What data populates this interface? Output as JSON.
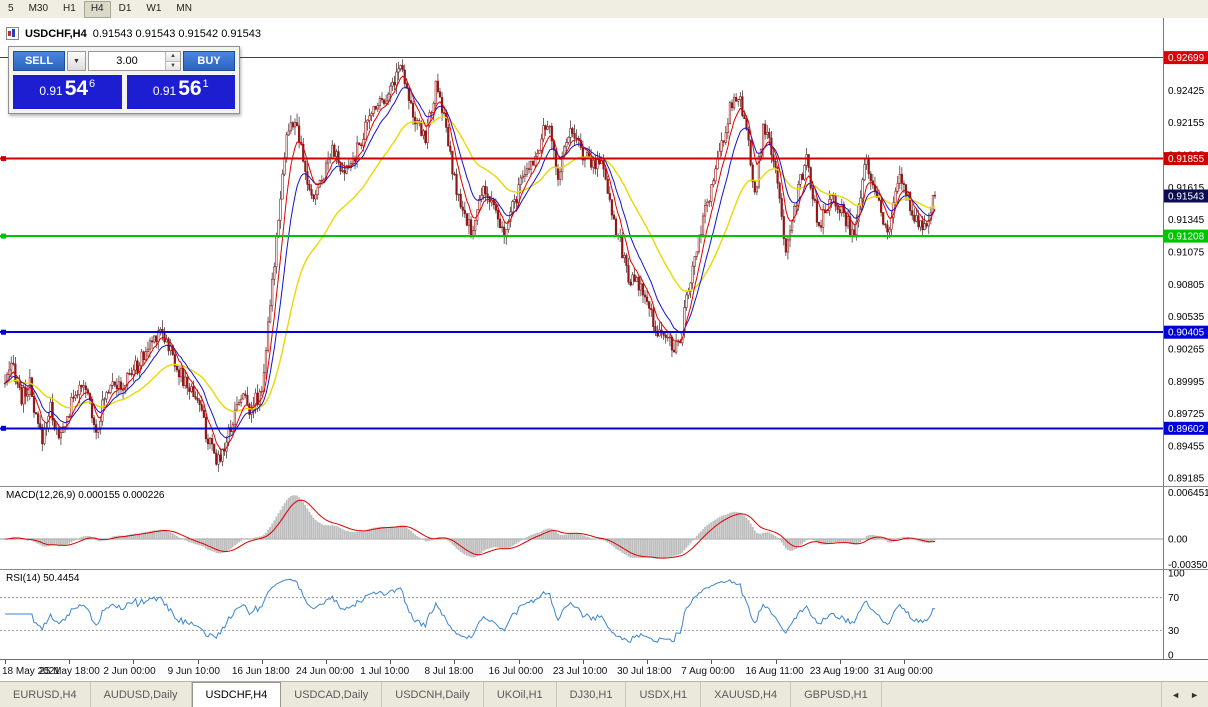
{
  "toolbar": {
    "items": [
      "5",
      "M30",
      "H1",
      "H4",
      "D1",
      "W1",
      "MN"
    ],
    "active": "H4"
  },
  "chart": {
    "symbol": "USDCHF,H4",
    "ohlc": "0.91543 0.91543 0.91542 0.91543",
    "trade_panel": {
      "sell_label": "SELL",
      "buy_label": "BUY",
      "volume": "3.00",
      "sell_price_prefix": "0.91",
      "sell_price_big": "54",
      "sell_price_sup": "6",
      "buy_price_prefix": "0.91",
      "buy_price_big": "56",
      "buy_price_sup": "1"
    },
    "axis": {
      "ticks": [
        0.92425,
        0.92155,
        0.91885,
        0.91615,
        0.91345,
        0.91075,
        0.90805,
        0.90535,
        0.90265,
        0.89995,
        0.89725,
        0.89455,
        0.89185
      ],
      "current": {
        "value": "0.91543",
        "bg": "#0c0c52"
      }
    },
    "hlines": [
      {
        "price": 0.92699,
        "label": "0.92699",
        "color": "#dd0000",
        "width": 1,
        "handle": false
      },
      {
        "price": 0.91855,
        "label": "0.91855",
        "color": "#cc0000",
        "width": 2,
        "handle": true
      },
      {
        "price": 0.91208,
        "label": "0.91208",
        "color": "#00c400",
        "width": 2,
        "handle": true
      },
      {
        "price": 0.90405,
        "label": "0.90405",
        "color": "#0000d8",
        "width": 2,
        "handle": true
      },
      {
        "price": 0.89602,
        "label": "0.89602",
        "color": "#0000d8",
        "width": 2,
        "handle": true
      }
    ]
  },
  "chart_data": {
    "type": "candlestick",
    "symbol": "USDCHF",
    "timeframe": "H4",
    "bars": 450,
    "ylim": [
      0.8912,
      0.9303
    ],
    "last_close": 0.91543,
    "candle_up_color": "#ffffff",
    "candle_down_color": "#8f1818",
    "candle_border": "#8f1818",
    "wick_color": "#3a2020",
    "price_path": [
      [
        0,
        0.8998
      ],
      [
        4,
        0.9012
      ],
      [
        8,
        0.8985
      ],
      [
        12,
        0.8996
      ],
      [
        14,
        0.8972
      ],
      [
        18,
        0.8952
      ],
      [
        22,
        0.8978
      ],
      [
        26,
        0.895
      ],
      [
        30,
        0.8968
      ],
      [
        34,
        0.8992
      ],
      [
        40,
        0.899
      ],
      [
        44,
        0.8958
      ],
      [
        48,
        0.8985
      ],
      [
        52,
        0.9004
      ],
      [
        56,
        0.899
      ],
      [
        60,
        0.9006
      ],
      [
        64,
        0.9012
      ],
      [
        70,
        0.903
      ],
      [
        75,
        0.9045
      ],
      [
        80,
        0.9025
      ],
      [
        86,
        0.9
      ],
      [
        93,
        0.8986
      ],
      [
        98,
        0.895
      ],
      [
        102,
        0.8932
      ],
      [
        106,
        0.8945
      ],
      [
        110,
        0.8968
      ],
      [
        114,
        0.899
      ],
      [
        118,
        0.8978
      ],
      [
        122,
        0.8986
      ],
      [
        124,
        0.8994
      ],
      [
        128,
        0.906
      ],
      [
        132,
        0.914
      ],
      [
        136,
        0.9205
      ],
      [
        140,
        0.9218
      ],
      [
        144,
        0.9182
      ],
      [
        148,
        0.915
      ],
      [
        153,
        0.9168
      ],
      [
        158,
        0.9198
      ],
      [
        163,
        0.917
      ],
      [
        168,
        0.9184
      ],
      [
        173,
        0.9206
      ],
      [
        179,
        0.9232
      ],
      [
        185,
        0.924
      ],
      [
        191,
        0.9264
      ],
      [
        194,
        0.9248
      ],
      [
        198,
        0.9214
      ],
      [
        203,
        0.9204
      ],
      [
        208,
        0.9244
      ],
      [
        212,
        0.9222
      ],
      [
        216,
        0.9174
      ],
      [
        221,
        0.9138
      ],
      [
        226,
        0.9124
      ],
      [
        231,
        0.9164
      ],
      [
        236,
        0.9142
      ],
      [
        241,
        0.912
      ],
      [
        246,
        0.915
      ],
      [
        250,
        0.9168
      ],
      [
        256,
        0.9188
      ],
      [
        262,
        0.9216
      ],
      [
        267,
        0.9172
      ],
      [
        272,
        0.9208
      ],
      [
        277,
        0.9196
      ],
      [
        283,
        0.918
      ],
      [
        288,
        0.9186
      ],
      [
        294,
        0.9134
      ],
      [
        301,
        0.9088
      ],
      [
        308,
        0.9074
      ],
      [
        314,
        0.9044
      ],
      [
        320,
        0.9034
      ],
      [
        325,
        0.9027
      ],
      [
        330,
        0.9076
      ],
      [
        334,
        0.9108
      ],
      [
        338,
        0.914
      ],
      [
        344,
        0.9182
      ],
      [
        350,
        0.9226
      ],
      [
        354,
        0.924
      ],
      [
        359,
        0.9196
      ],
      [
        362,
        0.9152
      ],
      [
        366,
        0.9214
      ],
      [
        371,
        0.9186
      ],
      [
        377,
        0.9112
      ],
      [
        383,
        0.916
      ],
      [
        387,
        0.9184
      ],
      [
        393,
        0.9128
      ],
      [
        399,
        0.9158
      ],
      [
        405,
        0.914
      ],
      [
        410,
        0.9118
      ],
      [
        415,
        0.9186
      ],
      [
        421,
        0.9158
      ],
      [
        426,
        0.912
      ],
      [
        432,
        0.9172
      ],
      [
        438,
        0.9142
      ],
      [
        443,
        0.9126
      ],
      [
        449,
        0.91543
      ]
    ],
    "indicators": {
      "ma": [
        {
          "period": 7,
          "color": "#e00000",
          "width": 1
        },
        {
          "period": 14,
          "color": "#1414cc",
          "width": 1
        },
        {
          "period": 40,
          "color": "#ead800",
          "width": 1.4
        }
      ]
    }
  },
  "macd": {
    "label": "MACD(12,26,9) 0.000155 0.000226",
    "fast": 12,
    "slow": 26,
    "signal": 9,
    "range": [
      -0.00385,
      0.0069
    ],
    "axis": [
      {
        "v": 0.006451,
        "label": "0.006451"
      },
      {
        "v": 0,
        "label": "0.00"
      },
      {
        "v": -0.0035,
        "label": "-0.00350"
      }
    ],
    "hist_color": "#bdbdbd",
    "signal_color": "#dd0000"
  },
  "rsi": {
    "label": "RSI(14) 50.4454",
    "period": 14,
    "levels": [
      70,
      30
    ],
    "axis": [
      {
        "v": 100,
        "label": "100"
      },
      {
        "v": 70,
        "label": "70"
      },
      {
        "v": 30,
        "label": "30"
      },
      {
        "v": 0,
        "label": "0"
      }
    ],
    "color": "#3d85cc"
  },
  "timeline": {
    "labels": [
      "18 May 2021",
      "25 May 18:00",
      "2 Jun 00:00",
      "9 Jun 10:00",
      "16 Jun 18:00",
      "24 Jun 00:00",
      "1 Jul 10:00",
      "8 Jul 18:00",
      "16 Jul 00:00",
      "23 Jul 10:00",
      "30 Jul 18:00",
      "7 Aug 00:00",
      "16 Aug 11:00",
      "23 Aug 19:00",
      "31 Aug 00:00"
    ]
  },
  "tabs": {
    "items": [
      "EURUSD,H4",
      "AUDUSD,Daily",
      "USDCHF,H4",
      "USDCAD,Daily",
      "USDCNH,Daily",
      "UKOil,H1",
      "DJ30,H1",
      "USDX,H1",
      "XAUUSD,H4",
      "GBPUSD,H1"
    ],
    "active_index": 2
  }
}
